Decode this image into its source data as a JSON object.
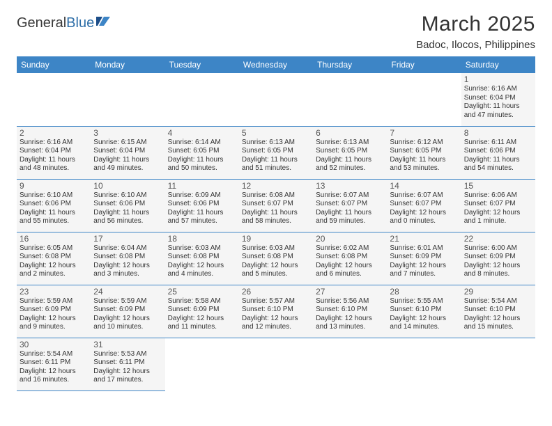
{
  "logo": {
    "text_dark": "General",
    "text_blue": "Blue"
  },
  "title": "March 2025",
  "subtitle": "Badoc, Ilocos, Philippines",
  "header_bg": "#3d85c6",
  "row_bg": "#f5f5f5",
  "border_color": "#3d85c6",
  "weekdays": [
    "Sunday",
    "Monday",
    "Tuesday",
    "Wednesday",
    "Thursday",
    "Friday",
    "Saturday"
  ],
  "weeks": [
    [
      null,
      null,
      null,
      null,
      null,
      null,
      {
        "n": "1",
        "sr": "Sunrise: 6:16 AM",
        "ss": "Sunset: 6:04 PM",
        "d1": "Daylight: 11 hours",
        "d2": "and 47 minutes."
      }
    ],
    [
      {
        "n": "2",
        "sr": "Sunrise: 6:16 AM",
        "ss": "Sunset: 6:04 PM",
        "d1": "Daylight: 11 hours",
        "d2": "and 48 minutes."
      },
      {
        "n": "3",
        "sr": "Sunrise: 6:15 AM",
        "ss": "Sunset: 6:04 PM",
        "d1": "Daylight: 11 hours",
        "d2": "and 49 minutes."
      },
      {
        "n": "4",
        "sr": "Sunrise: 6:14 AM",
        "ss": "Sunset: 6:05 PM",
        "d1": "Daylight: 11 hours",
        "d2": "and 50 minutes."
      },
      {
        "n": "5",
        "sr": "Sunrise: 6:13 AM",
        "ss": "Sunset: 6:05 PM",
        "d1": "Daylight: 11 hours",
        "d2": "and 51 minutes."
      },
      {
        "n": "6",
        "sr": "Sunrise: 6:13 AM",
        "ss": "Sunset: 6:05 PM",
        "d1": "Daylight: 11 hours",
        "d2": "and 52 minutes."
      },
      {
        "n": "7",
        "sr": "Sunrise: 6:12 AM",
        "ss": "Sunset: 6:05 PM",
        "d1": "Daylight: 11 hours",
        "d2": "and 53 minutes."
      },
      {
        "n": "8",
        "sr": "Sunrise: 6:11 AM",
        "ss": "Sunset: 6:06 PM",
        "d1": "Daylight: 11 hours",
        "d2": "and 54 minutes."
      }
    ],
    [
      {
        "n": "9",
        "sr": "Sunrise: 6:10 AM",
        "ss": "Sunset: 6:06 PM",
        "d1": "Daylight: 11 hours",
        "d2": "and 55 minutes."
      },
      {
        "n": "10",
        "sr": "Sunrise: 6:10 AM",
        "ss": "Sunset: 6:06 PM",
        "d1": "Daylight: 11 hours",
        "d2": "and 56 minutes."
      },
      {
        "n": "11",
        "sr": "Sunrise: 6:09 AM",
        "ss": "Sunset: 6:06 PM",
        "d1": "Daylight: 11 hours",
        "d2": "and 57 minutes."
      },
      {
        "n": "12",
        "sr": "Sunrise: 6:08 AM",
        "ss": "Sunset: 6:07 PM",
        "d1": "Daylight: 11 hours",
        "d2": "and 58 minutes."
      },
      {
        "n": "13",
        "sr": "Sunrise: 6:07 AM",
        "ss": "Sunset: 6:07 PM",
        "d1": "Daylight: 11 hours",
        "d2": "and 59 minutes."
      },
      {
        "n": "14",
        "sr": "Sunrise: 6:07 AM",
        "ss": "Sunset: 6:07 PM",
        "d1": "Daylight: 12 hours",
        "d2": "and 0 minutes."
      },
      {
        "n": "15",
        "sr": "Sunrise: 6:06 AM",
        "ss": "Sunset: 6:07 PM",
        "d1": "Daylight: 12 hours",
        "d2": "and 1 minute."
      }
    ],
    [
      {
        "n": "16",
        "sr": "Sunrise: 6:05 AM",
        "ss": "Sunset: 6:08 PM",
        "d1": "Daylight: 12 hours",
        "d2": "and 2 minutes."
      },
      {
        "n": "17",
        "sr": "Sunrise: 6:04 AM",
        "ss": "Sunset: 6:08 PM",
        "d1": "Daylight: 12 hours",
        "d2": "and 3 minutes."
      },
      {
        "n": "18",
        "sr": "Sunrise: 6:03 AM",
        "ss": "Sunset: 6:08 PM",
        "d1": "Daylight: 12 hours",
        "d2": "and 4 minutes."
      },
      {
        "n": "19",
        "sr": "Sunrise: 6:03 AM",
        "ss": "Sunset: 6:08 PM",
        "d1": "Daylight: 12 hours",
        "d2": "and 5 minutes."
      },
      {
        "n": "20",
        "sr": "Sunrise: 6:02 AM",
        "ss": "Sunset: 6:08 PM",
        "d1": "Daylight: 12 hours",
        "d2": "and 6 minutes."
      },
      {
        "n": "21",
        "sr": "Sunrise: 6:01 AM",
        "ss": "Sunset: 6:09 PM",
        "d1": "Daylight: 12 hours",
        "d2": "and 7 minutes."
      },
      {
        "n": "22",
        "sr": "Sunrise: 6:00 AM",
        "ss": "Sunset: 6:09 PM",
        "d1": "Daylight: 12 hours",
        "d2": "and 8 minutes."
      }
    ],
    [
      {
        "n": "23",
        "sr": "Sunrise: 5:59 AM",
        "ss": "Sunset: 6:09 PM",
        "d1": "Daylight: 12 hours",
        "d2": "and 9 minutes."
      },
      {
        "n": "24",
        "sr": "Sunrise: 5:59 AM",
        "ss": "Sunset: 6:09 PM",
        "d1": "Daylight: 12 hours",
        "d2": "and 10 minutes."
      },
      {
        "n": "25",
        "sr": "Sunrise: 5:58 AM",
        "ss": "Sunset: 6:09 PM",
        "d1": "Daylight: 12 hours",
        "d2": "and 11 minutes."
      },
      {
        "n": "26",
        "sr": "Sunrise: 5:57 AM",
        "ss": "Sunset: 6:10 PM",
        "d1": "Daylight: 12 hours",
        "d2": "and 12 minutes."
      },
      {
        "n": "27",
        "sr": "Sunrise: 5:56 AM",
        "ss": "Sunset: 6:10 PM",
        "d1": "Daylight: 12 hours",
        "d2": "and 13 minutes."
      },
      {
        "n": "28",
        "sr": "Sunrise: 5:55 AM",
        "ss": "Sunset: 6:10 PM",
        "d1": "Daylight: 12 hours",
        "d2": "and 14 minutes."
      },
      {
        "n": "29",
        "sr": "Sunrise: 5:54 AM",
        "ss": "Sunset: 6:10 PM",
        "d1": "Daylight: 12 hours",
        "d2": "and 15 minutes."
      }
    ],
    [
      {
        "n": "30",
        "sr": "Sunrise: 5:54 AM",
        "ss": "Sunset: 6:11 PM",
        "d1": "Daylight: 12 hours",
        "d2": "and 16 minutes."
      },
      {
        "n": "31",
        "sr": "Sunrise: 5:53 AM",
        "ss": "Sunset: 6:11 PM",
        "d1": "Daylight: 12 hours",
        "d2": "and 17 minutes."
      },
      null,
      null,
      null,
      null,
      null
    ]
  ]
}
